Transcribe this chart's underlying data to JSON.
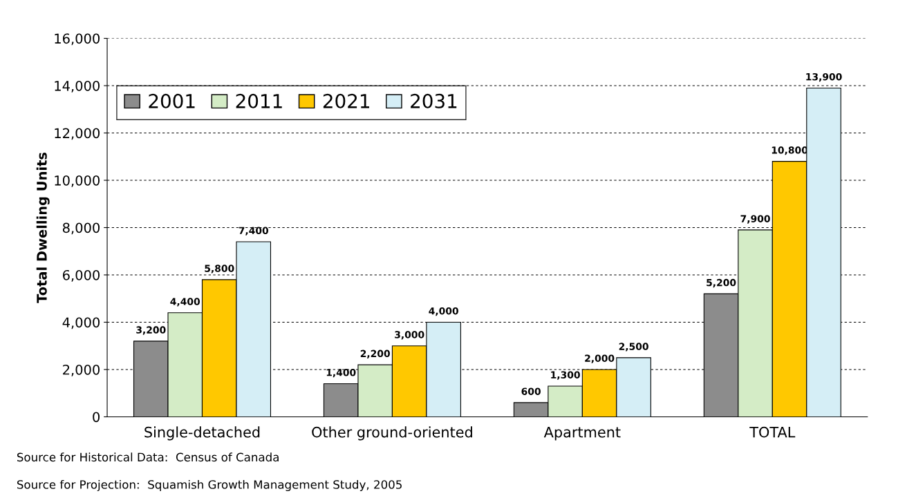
{
  "chart_data": {
    "type": "bar",
    "ylabel": "Total Dwelling Units",
    "categories": [
      "Single-detached",
      "Other ground-oriented",
      "Apartment",
      "TOTAL"
    ],
    "series": [
      {
        "name": "2001",
        "color": "#8c8c8c",
        "values": [
          3200,
          1400,
          600,
          5200
        ],
        "value_labels": [
          "3,200",
          "1,400",
          "600",
          "5,200"
        ]
      },
      {
        "name": "2011",
        "color": "#d4ecc6",
        "values": [
          4400,
          2200,
          1300,
          7900
        ],
        "value_labels": [
          "4,400",
          "2,200",
          "1,300",
          "7,900"
        ]
      },
      {
        "name": "2021",
        "color": "#ffc800",
        "values": [
          5800,
          3000,
          2000,
          10800
        ],
        "value_labels": [
          "5,800",
          "3,000",
          "2,000",
          "10,800"
        ]
      },
      {
        "name": "2031",
        "color": "#d5eef6",
        "values": [
          7400,
          4000,
          2500,
          13900
        ],
        "value_labels": [
          "7,400",
          "4,000",
          "2,500",
          "13,900"
        ]
      }
    ],
    "ylim": [
      0,
      16000
    ],
    "yticks": [
      0,
      {
        "value": 2000,
        "label": "2,000"
      },
      {
        "value": 4000,
        "label": "4,000"
      },
      {
        "value": 6000,
        "label": "6,000"
      },
      {
        "value": 8000,
        "label": "8,000"
      },
      {
        "value": 10000,
        "label": "10,000"
      },
      {
        "value": 12000,
        "label": "12,000"
      },
      {
        "value": 14000,
        "label": "14,000"
      },
      {
        "value": 16000,
        "label": "16,000"
      }
    ],
    "grid": "y",
    "legend": "top left",
    "annotations": [
      "Source for Historical Data:  Census of Canada",
      "Source for Projection:  Squamish Growth Management Study, 2005"
    ]
  }
}
